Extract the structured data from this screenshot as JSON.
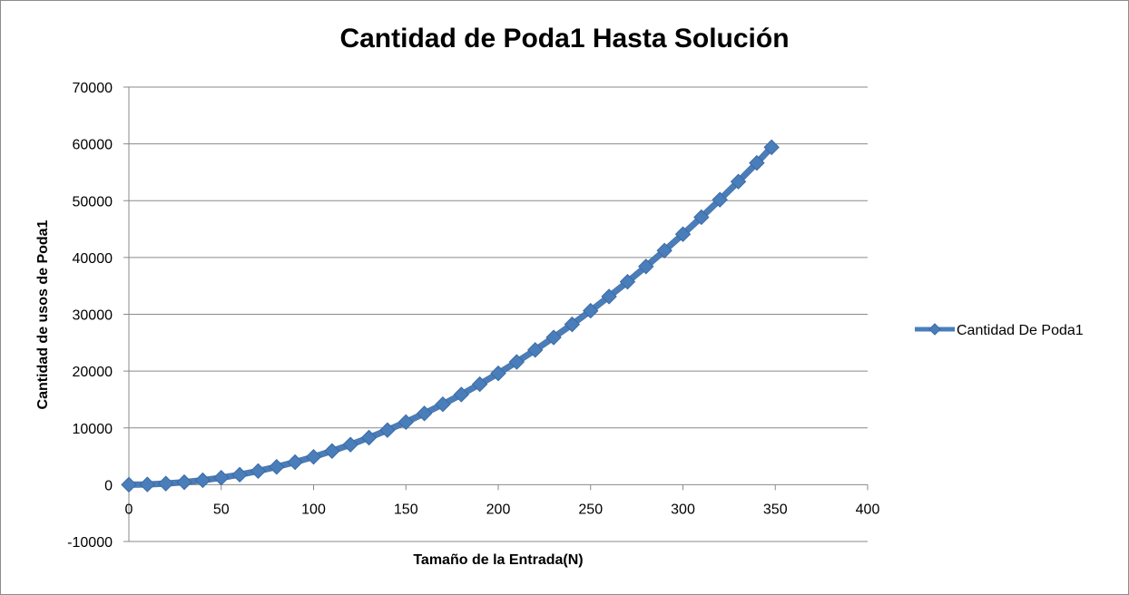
{
  "chart_data": {
    "type": "line",
    "title": "Cantidad de Poda1 Hasta Solución",
    "xlabel": "Tamaño de la Entrada(N)",
    "ylabel": "Cantidad de usos de Poda1",
    "xlim": [
      0,
      400
    ],
    "ylim": [
      -10000,
      70000
    ],
    "xticks": [
      "0",
      "50",
      "100",
      "150",
      "200",
      "250",
      "300",
      "350",
      "400"
    ],
    "yticks": [
      "-10000",
      "0",
      "10000",
      "20000",
      "30000",
      "40000",
      "50000",
      "60000",
      "70000"
    ],
    "grid": true,
    "legend_position": "right",
    "series": [
      {
        "name": "Cantidad De Poda1",
        "color": "#4a7ebb",
        "marker": "diamond",
        "x": [
          0,
          10,
          20,
          30,
          40,
          50,
          60,
          70,
          80,
          90,
          100,
          110,
          120,
          130,
          140,
          150,
          160,
          170,
          180,
          190,
          200,
          210,
          220,
          230,
          240,
          250,
          260,
          270,
          280,
          290,
          300,
          310,
          320,
          330,
          340,
          348
        ],
        "y": [
          0,
          49,
          196,
          441,
          784,
          1225,
          1764,
          2401,
          3136,
          3969,
          4900,
          5929,
          7056,
          8281,
          9604,
          11025,
          12544,
          14161,
          15876,
          17689,
          19600,
          21609,
          23716,
          25921,
          28224,
          30625,
          33124,
          35721,
          38416,
          41209,
          44100,
          47089,
          50176,
          53361,
          56644,
          59400
        ]
      }
    ]
  }
}
